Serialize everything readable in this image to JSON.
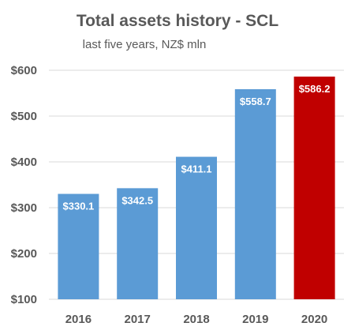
{
  "chart_data": {
    "type": "bar",
    "title": "Total assets history - SCL",
    "subtitle": "last five years, NZ$ mln",
    "categories": [
      "2016",
      "2017",
      "2018",
      "2019",
      "2020"
    ],
    "values": [
      330.1,
      342.5,
      411.1,
      558.7,
      586.2
    ],
    "data_labels": [
      "$330.1",
      "$342.5",
      "$411.1",
      "$558.7",
      "$586.2"
    ],
    "bar_colors": [
      "#5b9bd5",
      "#5b9bd5",
      "#5b9bd5",
      "#5b9bd5",
      "#c00000"
    ],
    "ylim": [
      100,
      600
    ],
    "yticks": [
      100,
      200,
      300,
      400,
      500,
      600
    ],
    "ytick_labels": [
      "$100",
      "$200",
      "$300",
      "$400",
      "$500",
      "$600"
    ],
    "grid": true,
    "legend": "none",
    "xlabel": "",
    "ylabel": ""
  }
}
